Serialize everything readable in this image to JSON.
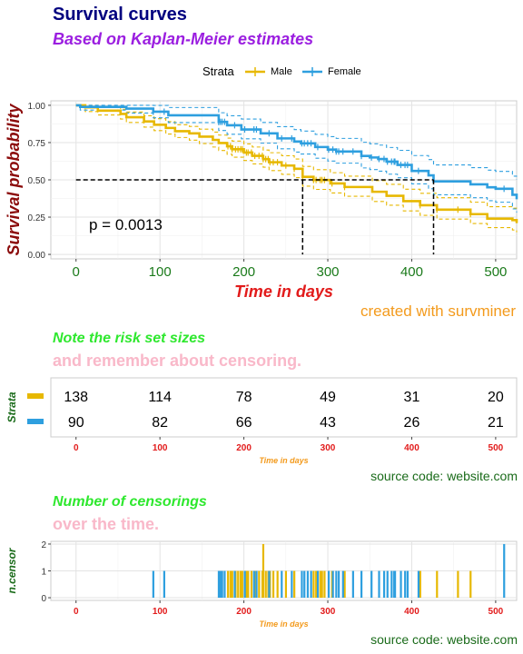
{
  "chart_data": [
    {
      "type": "line",
      "subtype": "kaplan-meier survival curve",
      "title": "Survival curves",
      "subtitle": "Based on Kaplan-Meier estimates",
      "xlabel": "Time in days",
      "ylabel": "Survival probability",
      "legend_title": "Strata",
      "legend_position": "top",
      "xlim": [
        -30,
        525
      ],
      "ylim": [
        -0.03,
        1.03
      ],
      "xticks": [
        0,
        100,
        200,
        300,
        400,
        500
      ],
      "yticks": [
        0,
        0.25,
        0.5,
        0.75,
        1.0
      ],
      "ytick_labels": [
        "0.00",
        "0.25",
        "0.50",
        "0.75",
        "1.00"
      ],
      "grid": true,
      "pvalue_text": "p = 0.0013",
      "caption": "created with survminer",
      "median_survival": {
        "level": 0.5,
        "Male": 270,
        "Female": 426
      },
      "series": [
        {
          "name": "Male",
          "color": "#E7B800",
          "points": [
            [
              0,
              1.0
            ],
            [
              11,
              0.986
            ],
            [
              26,
              0.964
            ],
            [
              53,
              0.942
            ],
            [
              60,
              0.92
            ],
            [
              81,
              0.892
            ],
            [
              93,
              0.87
            ],
            [
              107,
              0.848
            ],
            [
              118,
              0.826
            ],
            [
              135,
              0.812
            ],
            [
              147,
              0.79
            ],
            [
              163,
              0.768
            ],
            [
              170,
              0.747
            ],
            [
              180,
              0.725
            ],
            [
              186,
              0.705
            ],
            [
              200,
              0.683
            ],
            [
              210,
              0.661
            ],
            [
              223,
              0.639
            ],
            [
              230,
              0.618
            ],
            [
              245,
              0.596
            ],
            [
              260,
              0.574
            ],
            [
              270,
              0.52
            ],
            [
              283,
              0.499
            ],
            [
              303,
              0.476
            ],
            [
              320,
              0.452
            ],
            [
              353,
              0.42
            ],
            [
              370,
              0.393
            ],
            [
              390,
              0.357
            ],
            [
              410,
              0.33
            ],
            [
              430,
              0.3
            ],
            [
              455,
              0.3
            ],
            [
              470,
              0.27
            ],
            [
              490,
              0.24
            ],
            [
              520,
              0.23
            ],
            [
              525,
              0.21
            ]
          ],
          "ci_upper": [
            [
              0,
              1.0
            ],
            [
              11,
              1.0
            ],
            [
              26,
              0.99
            ],
            [
              53,
              0.973
            ],
            [
              60,
              0.955
            ],
            [
              81,
              0.93
            ],
            [
              93,
              0.91
            ],
            [
              107,
              0.89
            ],
            [
              118,
              0.87
            ],
            [
              135,
              0.858
            ],
            [
              147,
              0.84
            ],
            [
              163,
              0.82
            ],
            [
              170,
              0.8
            ],
            [
              180,
              0.78
            ],
            [
              186,
              0.76
            ],
            [
              200,
              0.741
            ],
            [
              210,
              0.72
            ],
            [
              223,
              0.7
            ],
            [
              230,
              0.682
            ],
            [
              245,
              0.662
            ],
            [
              260,
              0.64
            ],
            [
              270,
              0.59
            ],
            [
              283,
              0.568
            ],
            [
              303,
              0.548
            ],
            [
              320,
              0.525
            ],
            [
              353,
              0.495
            ],
            [
              370,
              0.47
            ],
            [
              390,
              0.437
            ],
            [
              410,
              0.41
            ],
            [
              430,
              0.38
            ],
            [
              455,
              0.38
            ],
            [
              470,
              0.35
            ],
            [
              490,
              0.32
            ],
            [
              520,
              0.31
            ],
            [
              525,
              0.29
            ]
          ],
          "ci_lower": [
            [
              0,
              1.0
            ],
            [
              11,
              0.958
            ],
            [
              26,
              0.935
            ],
            [
              53,
              0.908
            ],
            [
              60,
              0.885
            ],
            [
              81,
              0.854
            ],
            [
              93,
              0.83
            ],
            [
              107,
              0.807
            ],
            [
              118,
              0.784
            ],
            [
              135,
              0.766
            ],
            [
              147,
              0.743
            ],
            [
              163,
              0.72
            ],
            [
              170,
              0.697
            ],
            [
              180,
              0.672
            ],
            [
              186,
              0.652
            ],
            [
              200,
              0.63
            ],
            [
              210,
              0.607
            ],
            [
              223,
              0.585
            ],
            [
              230,
              0.562
            ],
            [
              245,
              0.537
            ],
            [
              260,
              0.515
            ],
            [
              270,
              0.458
            ],
            [
              283,
              0.436
            ],
            [
              303,
              0.412
            ],
            [
              320,
              0.39
            ],
            [
              353,
              0.355
            ],
            [
              370,
              0.33
            ],
            [
              390,
              0.292
            ],
            [
              410,
              0.262
            ],
            [
              430,
              0.237
            ],
            [
              455,
              0.237
            ],
            [
              470,
              0.207
            ],
            [
              490,
              0.18
            ],
            [
              520,
              0.164
            ],
            [
              525,
              0.148
            ]
          ]
        },
        {
          "name": "Female",
          "color": "#2E9FDF",
          "points": [
            [
              0,
              1.0
            ],
            [
              5,
              0.989
            ],
            [
              60,
              0.978
            ],
            [
              92,
              0.957
            ],
            [
              110,
              0.933
            ],
            [
              170,
              0.889
            ],
            [
              180,
              0.866
            ],
            [
              197,
              0.838
            ],
            [
              220,
              0.812
            ],
            [
              240,
              0.778
            ],
            [
              260,
              0.757
            ],
            [
              268,
              0.745
            ],
            [
              285,
              0.72
            ],
            [
              300,
              0.703
            ],
            [
              310,
              0.69
            ],
            [
              340,
              0.66
            ],
            [
              350,
              0.65
            ],
            [
              360,
              0.64
            ],
            [
              370,
              0.622
            ],
            [
              383,
              0.6
            ],
            [
              400,
              0.56
            ],
            [
              420,
              0.53
            ],
            [
              426,
              0.49
            ],
            [
              445,
              0.49
            ],
            [
              460,
              0.49
            ],
            [
              470,
              0.47
            ],
            [
              490,
              0.45
            ],
            [
              500,
              0.44
            ],
            [
              520,
              0.4
            ],
            [
              525,
              0.37
            ]
          ],
          "ci_upper": [
            [
              0,
              1.0
            ],
            [
              5,
              1.0
            ],
            [
              60,
              1.0
            ],
            [
              92,
              0.999
            ],
            [
              110,
              0.985
            ],
            [
              170,
              0.95
            ],
            [
              180,
              0.93
            ],
            [
              197,
              0.908
            ],
            [
              220,
              0.885
            ],
            [
              240,
              0.857
            ],
            [
              260,
              0.837
            ],
            [
              268,
              0.827
            ],
            [
              285,
              0.805
            ],
            [
              300,
              0.79
            ],
            [
              310,
              0.778
            ],
            [
              340,
              0.752
            ],
            [
              350,
              0.742
            ],
            [
              360,
              0.733
            ],
            [
              370,
              0.717
            ],
            [
              383,
              0.698
            ],
            [
              400,
              0.663
            ],
            [
              420,
              0.636
            ],
            [
              426,
              0.6
            ],
            [
              445,
              0.6
            ],
            [
              460,
              0.6
            ],
            [
              470,
              0.582
            ],
            [
              490,
              0.565
            ],
            [
              500,
              0.557
            ],
            [
              520,
              0.525
            ],
            [
              525,
              0.5
            ]
          ],
          "ci_lower": [
            [
              0,
              1.0
            ],
            [
              5,
              0.968
            ],
            [
              60,
              0.948
            ],
            [
              92,
              0.916
            ],
            [
              110,
              0.884
            ],
            [
              170,
              0.831
            ],
            [
              180,
              0.806
            ],
            [
              197,
              0.775
            ],
            [
              220,
              0.746
            ],
            [
              240,
              0.708
            ],
            [
              260,
              0.686
            ],
            [
              268,
              0.673
            ],
            [
              285,
              0.645
            ],
            [
              300,
              0.626
            ],
            [
              310,
              0.612
            ],
            [
              340,
              0.58
            ],
            [
              350,
              0.569
            ],
            [
              360,
              0.558
            ],
            [
              370,
              0.538
            ],
            [
              383,
              0.514
            ],
            [
              400,
              0.473
            ],
            [
              420,
              0.44
            ],
            [
              426,
              0.4
            ],
            [
              445,
              0.4
            ],
            [
              460,
              0.4
            ],
            [
              470,
              0.38
            ],
            [
              490,
              0.36
            ],
            [
              500,
              0.35
            ],
            [
              520,
              0.305
            ],
            [
              525,
              0.28
            ]
          ]
        }
      ]
    },
    {
      "type": "table",
      "title": "Note the risk set sizes",
      "subtitle": "and remember about censoring.",
      "ylabel": "Strata",
      "xlabel": "Time in days",
      "xticks": [
        0,
        100,
        200,
        300,
        400,
        500
      ],
      "xlim": [
        -30,
        525
      ],
      "caption": "source code: website.com",
      "rows": [
        {
          "name": "Male",
          "color": "#E7B800",
          "values": [
            138,
            114,
            78,
            49,
            31,
            20
          ]
        },
        {
          "name": "Female",
          "color": "#2E9FDF",
          "values": [
            90,
            82,
            66,
            43,
            26,
            21
          ]
        }
      ]
    },
    {
      "type": "bar",
      "title": "Number of censorings",
      "subtitle": "over the time.",
      "ylabel": "n.censor",
      "xlabel": "Time in days",
      "xticks": [
        0,
        100,
        200,
        300,
        400,
        500
      ],
      "yticks": [
        0,
        1,
        2
      ],
      "xlim": [
        -30,
        525
      ],
      "ylim": [
        -0.1,
        2.1
      ],
      "grid": true,
      "caption": "source code: website.com",
      "series": [
        {
          "name": "Male",
          "color": "#E7B800",
          "x": [
            181,
            184,
            186,
            190,
            193,
            196,
            198,
            203,
            205,
            209,
            213,
            218,
            222,
            223,
            226,
            229,
            231,
            235,
            240,
            250,
            260,
            283,
            286,
            291,
            293,
            296,
            305,
            320,
            410,
            430,
            455,
            470
          ],
          "n": [
            1,
            1,
            1,
            1,
            1,
            1,
            1,
            1,
            1,
            1,
            1,
            1,
            1,
            2,
            1,
            1,
            1,
            1,
            1,
            1,
            1,
            1,
            1,
            1,
            1,
            1,
            1,
            1,
            1,
            1,
            1,
            1
          ]
        },
        {
          "name": "Female",
          "color": "#2E9FDF",
          "x": [
            92,
            105,
            170,
            172,
            174,
            177,
            189,
            201,
            212,
            215,
            230,
            245,
            257,
            269,
            272,
            276,
            280,
            288,
            301,
            306,
            310,
            313,
            318,
            330,
            340,
            352,
            361,
            367,
            371,
            376,
            379,
            380,
            387,
            392,
            395,
            408,
            510
          ],
          "n": [
            1,
            1,
            1,
            1,
            1,
            1,
            1,
            1,
            1,
            1,
            1,
            1,
            1,
            1,
            1,
            1,
            1,
            1,
            1,
            1,
            1,
            1,
            1,
            1,
            1,
            1,
            1,
            1,
            1,
            1,
            1,
            1,
            1,
            1,
            1,
            1,
            2
          ]
        }
      ]
    }
  ]
}
